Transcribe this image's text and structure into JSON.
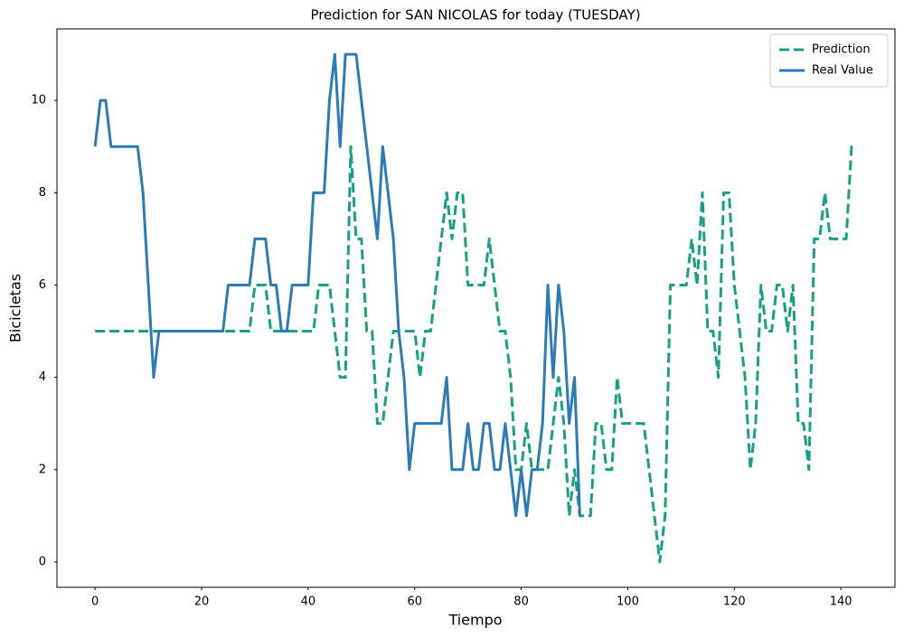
{
  "chart_data": {
    "type": "line",
    "title": "Prediction for SAN NICOLAS for today (TUESDAY)",
    "xlabel": "Tiempo",
    "ylabel": "Bicicletas",
    "xlim": [
      -7.15,
      150.15
    ],
    "xticks": [
      0,
      20,
      40,
      60,
      80,
      100,
      120,
      140
    ],
    "ylim": [
      -0.55,
      11.55
    ],
    "yticks": [
      0,
      2,
      4,
      6,
      8,
      10
    ],
    "legend": "upper right",
    "series": [
      {
        "name": "Prediction",
        "color": "#17a085",
        "linestyle": "dashed",
        "values": [
          5,
          5,
          5,
          5,
          5,
          5,
          5,
          5,
          5,
          5,
          5,
          5,
          5,
          5,
          5,
          5,
          5,
          5,
          5,
          5,
          5,
          5,
          5,
          5,
          5,
          5,
          5,
          5,
          5,
          5,
          6,
          6,
          6,
          5,
          5,
          5,
          5,
          5,
          5,
          5,
          5,
          5,
          6,
          6,
          6,
          5,
          4,
          4,
          9,
          7,
          7,
          5,
          5,
          3,
          3,
          4,
          5,
          5,
          5,
          5,
          5,
          4,
          5,
          5,
          6,
          7,
          8,
          7,
          8,
          8,
          6,
          6,
          6,
          6,
          7,
          6,
          5,
          5,
          4,
          2,
          2,
          3,
          2,
          2,
          2,
          2,
          3,
          4,
          3,
          1,
          2,
          1,
          1,
          1,
          3,
          3,
          2,
          2,
          4,
          3,
          3,
          3,
          3,
          3,
          2,
          1,
          0,
          1,
          6,
          6,
          6,
          6,
          7,
          6,
          8,
          5,
          5,
          4,
          8,
          8,
          6,
          5,
          4,
          2,
          3,
          6,
          5,
          5,
          6,
          6,
          5,
          6,
          3,
          3,
          2,
          7,
          7,
          8,
          7,
          7,
          7,
          7,
          9,
          9
        ]
      },
      {
        "name": "Real Value",
        "color": "#2b7bb9",
        "linestyle": "solid",
        "values": [
          9,
          10,
          10,
          9,
          9,
          9,
          9,
          9,
          9,
          8,
          6,
          4,
          5,
          5,
          5,
          5,
          5,
          5,
          5,
          5,
          5,
          5,
          5,
          5,
          5,
          6,
          6,
          6,
          6,
          6,
          7,
          7,
          7,
          6,
          6,
          5,
          5,
          6,
          6,
          6,
          6,
          8,
          8,
          8,
          10,
          11,
          9,
          11,
          11,
          11,
          10,
          9,
          8,
          7,
          9,
          8,
          7,
          5,
          4,
          2,
          3,
          3,
          3,
          3,
          3,
          3,
          4,
          2,
          2,
          2,
          3,
          2,
          2,
          3,
          3,
          2,
          2,
          3,
          2,
          1,
          2,
          1,
          2,
          2,
          3,
          6,
          4,
          6,
          5,
          3,
          4,
          1,
          null,
          null,
          null,
          null,
          null,
          null,
          null,
          null,
          null,
          null,
          null,
          null,
          null,
          null,
          null,
          null,
          null,
          null,
          null,
          null,
          null,
          null,
          null,
          null,
          null,
          null,
          null,
          null,
          null,
          null,
          null,
          null,
          null,
          null,
          null,
          null,
          null,
          null,
          null,
          null,
          null,
          null,
          null,
          null,
          null,
          null,
          null,
          null,
          null,
          null,
          null,
          null
        ]
      }
    ]
  }
}
